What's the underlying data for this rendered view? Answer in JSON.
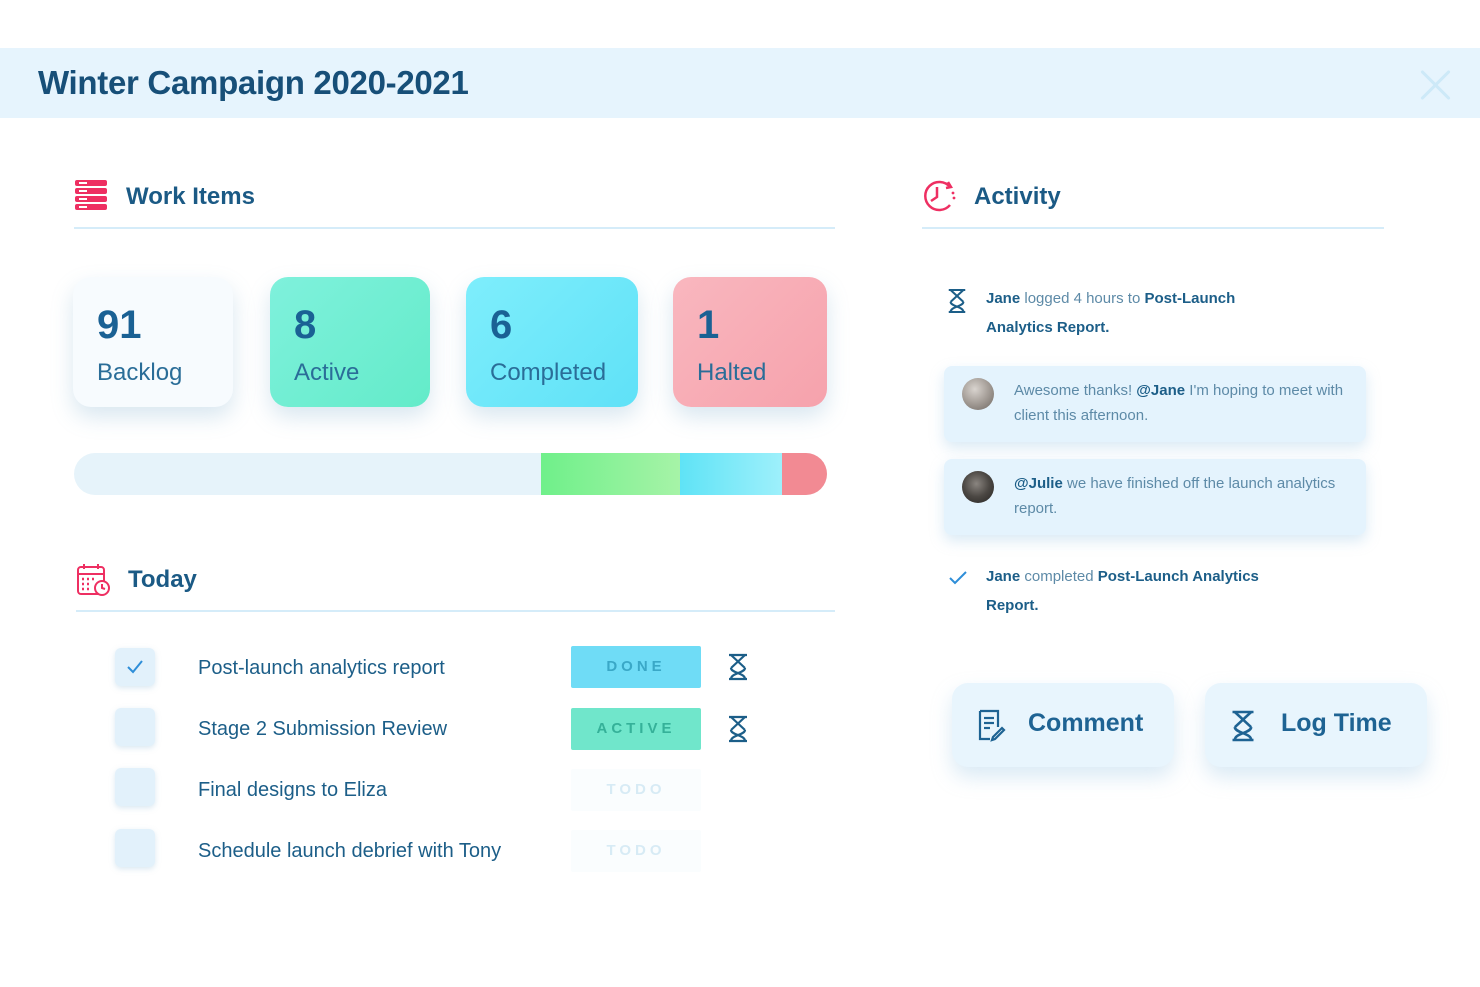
{
  "header": {
    "title": "Winter Campaign 2020-2021"
  },
  "work_items": {
    "title": "Work Items",
    "stats": [
      {
        "value": "91",
        "label": "Backlog"
      },
      {
        "value": "8",
        "label": "Active"
      },
      {
        "value": "6",
        "label": "Completed"
      },
      {
        "value": "1",
        "label": "Halted"
      }
    ],
    "progress_fractions": {
      "backlog": 0.62,
      "active": 0.185,
      "completed": 0.135,
      "halted": 0.06
    }
  },
  "today": {
    "title": "Today",
    "tasks": [
      {
        "label": "Post-launch analytics report",
        "status": "DONE",
        "checked": true
      },
      {
        "label": "Stage 2 Submission Review",
        "status": "ACTIVE",
        "checked": false
      },
      {
        "label": "Final designs to Eliza",
        "status": "TODO",
        "checked": false
      },
      {
        "label": "Schedule launch debrief with Tony",
        "status": "TODO",
        "checked": false
      }
    ]
  },
  "activity": {
    "title": "Activity",
    "log1": {
      "user": "Jane",
      "text1": " logged 4 hours to ",
      "target": "Post-Launch Analytics Report."
    },
    "comment1": {
      "pre": "Awesome thanks! ",
      "mention": "@Jane",
      "post": " I'm hoping to meet with client this afternoon."
    },
    "comment2": {
      "mention": "@Julie",
      "post": " we have finished off the launch analytics report."
    },
    "log2": {
      "user": "Jane",
      "text1": " completed ",
      "target": "Post-Launch Analytics Report."
    },
    "buttons": {
      "comment": "Comment",
      "log_time": "Log Time"
    }
  },
  "colors": {
    "accent_red": "#ee2f62",
    "done": "#6fdcf6",
    "active": "#70e6cb",
    "halted": "#f6a2ac"
  }
}
